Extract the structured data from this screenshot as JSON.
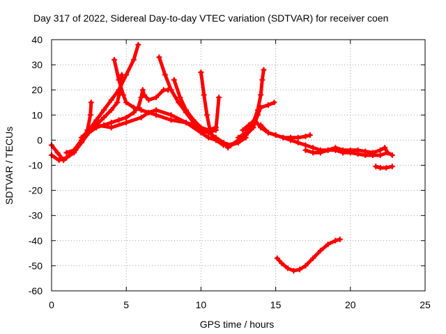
{
  "chart_data": {
    "type": "scatter",
    "title": "Day 317 of 2022, Sidereal Day-to-day VTEC variation (SDTVAR) for receiver coen",
    "xlabel": "GPS time / hours",
    "ylabel": "SDTVAR / TECUs",
    "xlim": [
      0,
      25
    ],
    "ylim": [
      -60,
      40
    ],
    "xticks": [
      0,
      5,
      10,
      15,
      20,
      25
    ],
    "yticks": [
      -60,
      -50,
      -40,
      -30,
      -20,
      -10,
      0,
      10,
      20,
      30,
      40
    ],
    "xtick_labels": [
      "0",
      "5",
      "10",
      "15",
      "20",
      "25"
    ],
    "ytick_labels": [
      "-60",
      "-50",
      "-40",
      "-30",
      "-20",
      "-10",
      "0",
      "10",
      "20",
      "30",
      "40"
    ],
    "grid": true,
    "marker": "+",
    "color": "#ff0000",
    "series": [
      {
        "name": "track-1",
        "points": [
          [
            0,
            -2
          ],
          [
            0.4,
            -5
          ],
          [
            0.8,
            -8
          ],
          [
            1.2,
            -6
          ],
          [
            1.6,
            -4
          ],
          [
            2,
            -1
          ],
          [
            2.4,
            4
          ],
          [
            2.6,
            10
          ],
          [
            2.65,
            15
          ]
        ]
      },
      {
        "name": "track-2",
        "points": [
          [
            0,
            -6
          ],
          [
            0.5,
            -8
          ],
          [
            1,
            -7
          ],
          [
            1.5,
            -5
          ],
          [
            2,
            -1
          ],
          [
            2.5,
            3
          ],
          [
            3,
            6
          ],
          [
            3.5,
            9
          ],
          [
            4,
            12
          ],
          [
            4.4,
            15
          ],
          [
            4.6,
            20
          ],
          [
            4.7,
            26
          ]
        ]
      },
      {
        "name": "track-3",
        "points": [
          [
            1,
            -5
          ],
          [
            1.5,
            -4
          ],
          [
            2,
            0
          ],
          [
            2.5,
            3
          ],
          [
            3,
            5
          ],
          [
            3.5,
            6
          ],
          [
            4,
            7
          ],
          [
            4.5,
            8
          ],
          [
            5,
            9
          ],
          [
            5.5,
            11
          ],
          [
            5.8,
            13
          ],
          [
            6,
            17
          ],
          [
            6.1,
            20
          ],
          [
            6.2,
            18
          ],
          [
            6.5,
            16
          ],
          [
            7,
            17
          ],
          [
            7.5,
            20
          ],
          [
            7.8,
            20
          ]
        ]
      },
      {
        "name": "track-4",
        "points": [
          [
            2,
            1
          ],
          [
            2.5,
            4
          ],
          [
            3,
            8
          ],
          [
            3.5,
            12
          ],
          [
            4,
            16
          ],
          [
            4.5,
            20
          ],
          [
            5,
            26
          ],
          [
            5.5,
            32
          ],
          [
            5.8,
            38
          ]
        ]
      },
      {
        "name": "track-5",
        "points": [
          [
            4.2,
            32
          ],
          [
            4.5,
            24
          ],
          [
            4.8,
            18
          ],
          [
            5,
            15
          ],
          [
            5.5,
            13
          ],
          [
            6,
            12
          ],
          [
            7,
            10
          ],
          [
            8,
            8
          ],
          [
            9,
            7
          ],
          [
            10,
            5
          ],
          [
            10.5,
            4
          ],
          [
            11,
            5
          ]
        ]
      },
      {
        "name": "track-6",
        "points": [
          [
            3,
            6
          ],
          [
            4,
            5
          ],
          [
            5,
            7
          ],
          [
            6,
            9
          ],
          [
            6.5,
            11
          ],
          [
            7,
            12
          ],
          [
            8,
            10
          ],
          [
            9,
            7
          ],
          [
            10,
            3
          ],
          [
            10.5,
            1
          ],
          [
            11,
            0
          ],
          [
            11.5,
            -1
          ],
          [
            12,
            -2
          ],
          [
            12.5,
            0
          ],
          [
            13,
            2
          ],
          [
            13.5,
            5
          ]
        ]
      },
      {
        "name": "track-7",
        "points": [
          [
            7.2,
            33
          ],
          [
            7.6,
            26
          ],
          [
            8,
            20
          ],
          [
            8.5,
            15
          ],
          [
            9,
            11
          ],
          [
            9.5,
            7
          ],
          [
            10,
            4
          ],
          [
            10.5,
            3
          ],
          [
            11,
            4
          ],
          [
            11.2,
            17
          ]
        ]
      },
      {
        "name": "track-8",
        "points": [
          [
            8.2,
            24
          ],
          [
            8.6,
            17
          ],
          [
            9,
            12
          ],
          [
            9.5,
            8
          ],
          [
            10,
            5
          ],
          [
            10.5,
            3
          ],
          [
            11,
            1
          ],
          [
            11.5,
            -1
          ],
          [
            11.8,
            -3
          ],
          [
            12,
            -2
          ],
          [
            12.5,
            -1
          ],
          [
            13,
            1
          ]
        ]
      },
      {
        "name": "track-9",
        "points": [
          [
            10,
            27
          ],
          [
            10.2,
            18
          ],
          [
            10.4,
            10
          ],
          [
            10.6,
            4
          ],
          [
            10.8,
            1
          ],
          [
            11,
            0
          ],
          [
            11.5,
            -2
          ]
        ]
      },
      {
        "name": "track-10",
        "points": [
          [
            12.5,
            1
          ],
          [
            13,
            3
          ],
          [
            13.5,
            7
          ],
          [
            13.8,
            12
          ],
          [
            14,
            18
          ],
          [
            14.1,
            24
          ],
          [
            14.2,
            28
          ]
        ]
      },
      {
        "name": "track-11",
        "points": [
          [
            13,
            2
          ],
          [
            13.5,
            5
          ],
          [
            13.8,
            10
          ],
          [
            14,
            13
          ],
          [
            14.5,
            14
          ],
          [
            14.9,
            15
          ]
        ]
      },
      {
        "name": "track-12",
        "points": [
          [
            12.8,
            4
          ],
          [
            13.2,
            6
          ],
          [
            13.6,
            8
          ],
          [
            14,
            5
          ],
          [
            14.5,
            3
          ],
          [
            15,
            2
          ],
          [
            15.5,
            1
          ],
          [
            16,
            1
          ],
          [
            16.5,
            1
          ],
          [
            17,
            1.5
          ],
          [
            17.3,
            2
          ]
        ]
      },
      {
        "name": "track-13",
        "points": [
          [
            14,
            6
          ],
          [
            14.5,
            3
          ],
          [
            15,
            2
          ],
          [
            15.5,
            1
          ],
          [
            16,
            0
          ],
          [
            16.5,
            -1
          ],
          [
            17,
            -2
          ],
          [
            17.5,
            -3
          ],
          [
            18,
            -4
          ],
          [
            18.5,
            -4
          ],
          [
            19,
            -4
          ],
          [
            19.5,
            -5
          ],
          [
            20,
            -5
          ],
          [
            20.5,
            -5.5
          ],
          [
            21,
            -6
          ],
          [
            21.5,
            -6
          ],
          [
            22,
            -6
          ],
          [
            22.5,
            -5
          ]
        ]
      },
      {
        "name": "track-14",
        "points": [
          [
            17,
            -4
          ],
          [
            17.5,
            -5
          ],
          [
            18,
            -5
          ],
          [
            18.5,
            -4
          ],
          [
            19,
            -3
          ],
          [
            19.5,
            -4
          ],
          [
            20,
            -4
          ],
          [
            20.5,
            -4
          ],
          [
            21,
            -4.5
          ],
          [
            21.5,
            -5
          ],
          [
            22,
            -4
          ],
          [
            22.3,
            -3
          ],
          [
            22.5,
            -5
          ],
          [
            22.8,
            -6
          ]
        ]
      },
      {
        "name": "track-15",
        "points": [
          [
            21.7,
            -10.5
          ],
          [
            22,
            -11
          ],
          [
            22.4,
            -11
          ],
          [
            22.8,
            -10.5
          ]
        ]
      },
      {
        "name": "track-16",
        "points": [
          [
            15.1,
            -47
          ],
          [
            15.4,
            -49
          ],
          [
            15.8,
            -51
          ],
          [
            16.2,
            -52
          ],
          [
            16.6,
            -51.5
          ],
          [
            17,
            -50
          ],
          [
            17.5,
            -47
          ],
          [
            18,
            -44
          ],
          [
            18.5,
            -41.5
          ],
          [
            19,
            -40
          ],
          [
            19.3,
            -39.5
          ]
        ]
      }
    ]
  }
}
